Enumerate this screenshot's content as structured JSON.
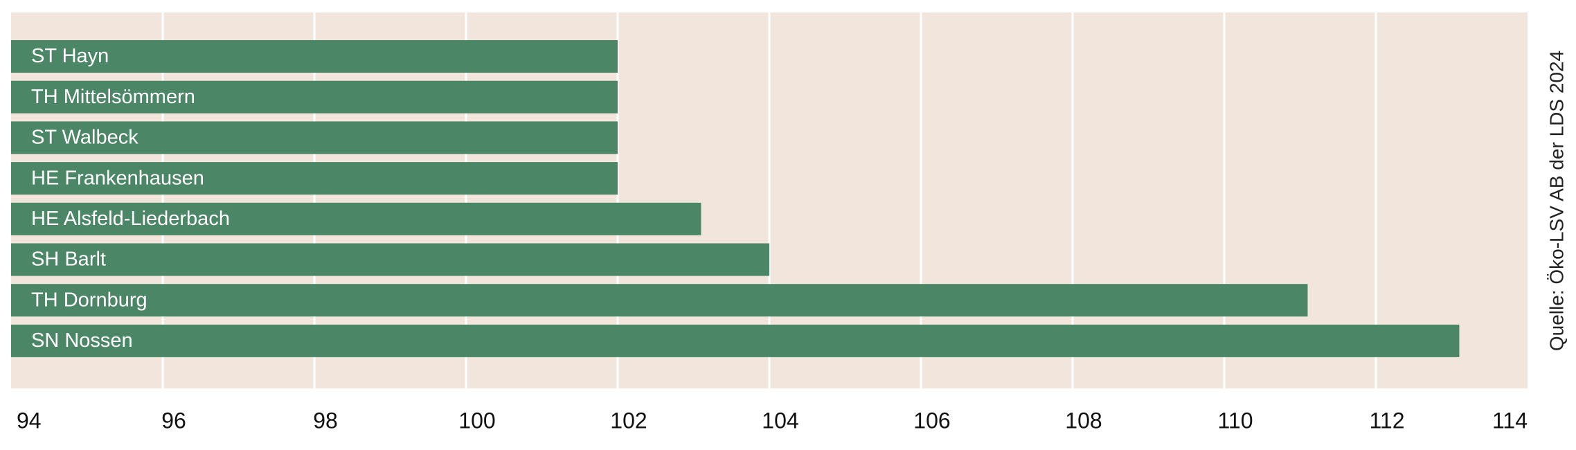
{
  "chart_data": {
    "type": "bar",
    "orientation": "horizontal",
    "categories": [
      "ST Hayn",
      "TH Mittelsömmern",
      "ST Walbeck",
      "HE Frankenhausen",
      "HE Alsfeld-Liederbach",
      "SH Barlt",
      "TH Dornburg",
      "SN Nossen"
    ],
    "values": [
      102.0,
      102.0,
      102.0,
      102.0,
      103.1,
      104.0,
      111.1,
      113.1
    ],
    "color": "#4b8766",
    "xlim": [
      94,
      114
    ],
    "xticks": [
      94,
      96,
      98,
      100,
      102,
      104,
      106,
      108,
      110,
      112,
      114
    ],
    "grid": true,
    "source": "Quelle: Öko-LSV AB der LDS 2024"
  }
}
